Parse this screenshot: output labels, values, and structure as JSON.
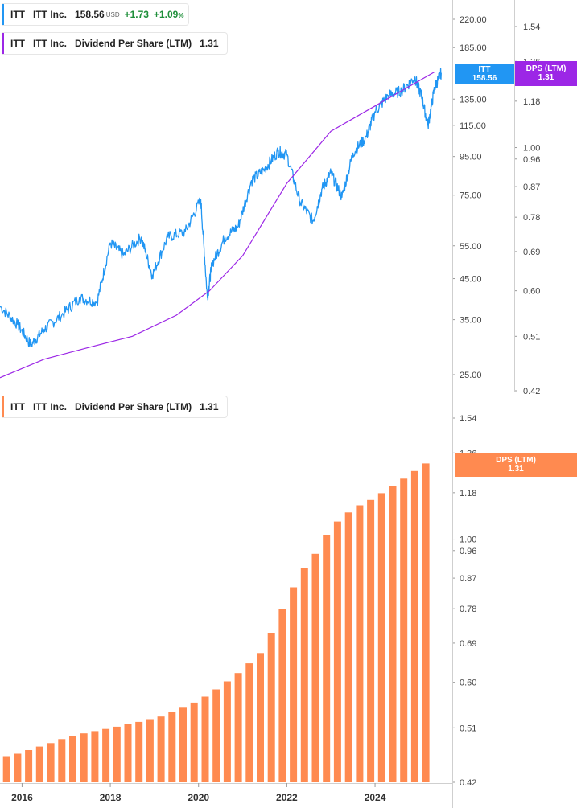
{
  "price_panel": {
    "legend": {
      "ticker": "ITT",
      "name": "ITT Inc.",
      "price": "158.56",
      "currency": "USD",
      "change": "+1.73",
      "change_pct": "+1.09",
      "pct_sign": "%"
    },
    "dps_legend": {
      "ticker": "ITT",
      "name": "ITT Inc.",
      "label": "Dividend Per Share (LTM)",
      "value": "1.31"
    },
    "price_tag": {
      "line1": "ITT",
      "line2": "158.56",
      "color": "#2196f3"
    },
    "dps_tag": {
      "line1": "DPS (LTM)",
      "line2": "1.31",
      "color": "#9c27e6"
    }
  },
  "dps_panel": {
    "legend": {
      "ticker": "ITT",
      "name": "ITT Inc.",
      "label": "Dividend Per Share (LTM)",
      "value": "1.31"
    },
    "dps_tag": {
      "line1": "DPS (LTM)",
      "line2": "1.31",
      "color": "#ff8a50"
    }
  },
  "chart_data": [
    {
      "type": "line",
      "scale": "log",
      "series": [
        {
          "name": "ITT",
          "color": "#2196f3",
          "x": [
            2015.5,
            2015.9,
            2016.2,
            2016.5,
            2016.9,
            2017.3,
            2017.7,
            2018.0,
            2018.3,
            2018.7,
            2018.95,
            2019.3,
            2019.7,
            2020.05,
            2020.2,
            2020.3,
            2020.6,
            2020.9,
            2021.2,
            2021.5,
            2021.8,
            2022.0,
            2022.3,
            2022.6,
            2022.8,
            2023.0,
            2023.25,
            2023.5,
            2023.8,
            2024.0,
            2024.3,
            2024.6,
            2024.9,
            2025.05,
            2025.2,
            2025.35,
            2025.5
          ],
          "y": [
            38,
            34,
            30,
            33,
            36,
            40,
            39,
            56,
            52,
            58,
            46,
            58,
            60,
            73,
            40,
            49,
            58,
            62,
            82,
            88,
            98,
            96,
            72,
            64,
            78,
            86,
            74,
            97,
            107,
            125,
            138,
            142,
            154,
            138,
            115,
            145,
            158.56
          ]
        },
        {
          "name": "DPS (LTM)",
          "color": "#9c27e6",
          "x": [
            2015.5,
            2016.5,
            2017.5,
            2018.5,
            2019.5,
            2020.25,
            2021.0,
            2022.0,
            2023.0,
            2024.0,
            2025.35
          ],
          "y": [
            0.44,
            0.47,
            0.49,
            0.51,
            0.55,
            0.6,
            0.68,
            0.88,
            1.06,
            1.16,
            1.31
          ]
        }
      ],
      "y_ticks": [
        25.0,
        35.0,
        45.0,
        55.0,
        75.0,
        95.0,
        115.0,
        135.0,
        185.0,
        220.0
      ],
      "y_ticks_right": [
        0.42,
        0.51,
        0.6,
        0.69,
        0.78,
        0.87,
        0.96,
        1.0,
        1.18,
        1.36,
        1.54
      ],
      "ylim": [
        22,
        240
      ],
      "ylim_right": [
        0.42,
        1.62
      ],
      "grid": false
    },
    {
      "type": "bar",
      "scale": "log",
      "series": [
        {
          "name": "Dividend Per Share (LTM)",
          "color": "#ff8a50",
          "x": [
            2015.65,
            2015.9,
            2016.15,
            2016.4,
            2016.65,
            2016.9,
            2017.15,
            2017.4,
            2017.65,
            2017.9,
            2018.15,
            2018.4,
            2018.65,
            2018.9,
            2019.15,
            2019.4,
            2019.65,
            2019.9,
            2020.15,
            2020.4,
            2020.65,
            2020.9,
            2021.15,
            2021.4,
            2021.65,
            2021.9,
            2022.15,
            2022.4,
            2022.65,
            2022.9,
            2023.15,
            2023.4,
            2023.65,
            2023.9,
            2024.15,
            2024.4,
            2024.65,
            2024.9,
            2025.15
          ],
          "values": [
            0.461,
            0.465,
            0.471,
            0.477,
            0.483,
            0.49,
            0.495,
            0.5,
            0.504,
            0.508,
            0.512,
            0.517,
            0.521,
            0.526,
            0.531,
            0.539,
            0.548,
            0.558,
            0.57,
            0.585,
            0.602,
            0.62,
            0.642,
            0.666,
            0.716,
            0.78,
            0.842,
            0.902,
            0.949,
            1.015,
            1.065,
            1.1,
            1.128,
            1.15,
            1.178,
            1.208,
            1.241,
            1.275,
            1.31
          ]
        }
      ],
      "x_ticks": [
        "2016",
        "2018",
        "2020",
        "2022",
        "2024"
      ],
      "x_tick_values": [
        2016,
        2018,
        2020,
        2022,
        2024
      ],
      "xlim": [
        2015.5,
        2025.75
      ],
      "y_ticks": [
        0.42,
        0.51,
        0.6,
        0.69,
        0.78,
        0.87,
        0.96,
        1.0,
        1.18,
        1.36,
        1.54
      ],
      "ylim": [
        0.42,
        1.62
      ],
      "grid": false
    }
  ]
}
